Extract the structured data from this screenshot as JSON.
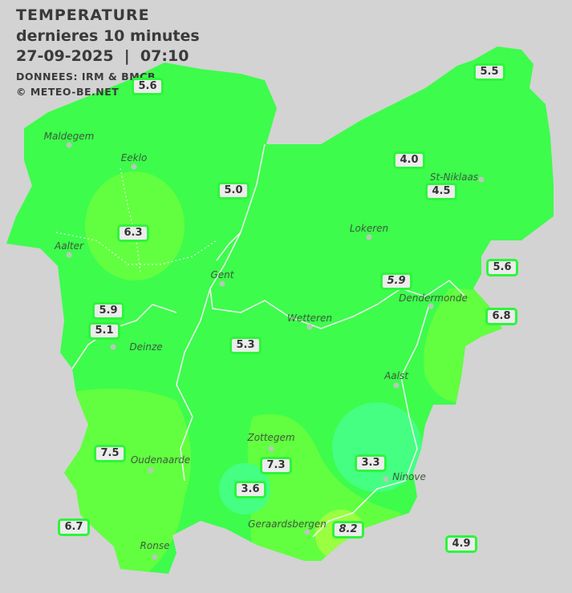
{
  "header": {
    "title": "TEMPERATURE",
    "subtitle": "dernieres 10 minutes",
    "datetime": "27-09-2025  |  07:10",
    "source": "DONNEES: IRM & BMCB",
    "copyright": "© METEO-BE.NET"
  },
  "colors": {
    "background": "#d3d3d3",
    "base_green": "#3dfc4c",
    "warm_green": "#62ff40",
    "cool_green": "#44ff82",
    "warmest": "#99ff40",
    "badge_border": "#2cf53c"
  },
  "towns": [
    "Maldegem",
    "Eeklo",
    "Aalter",
    "Gent",
    "Lokeren",
    "St-Niklaas",
    "Dendermonde",
    "Wetteren",
    "Deinze",
    "Aalst",
    "Zottegem",
    "Oudenaarde",
    "Ninove",
    "Geraardsbergen",
    "Ronse"
  ],
  "stations": [
    {
      "value": "5.6"
    },
    {
      "value": "5.5"
    },
    {
      "value": "4.0"
    },
    {
      "value": "4.5"
    },
    {
      "value": "5.0"
    },
    {
      "value": "6.3"
    },
    {
      "value": "5.6"
    },
    {
      "value": "5.9",
      "italic": true
    },
    {
      "value": "6.8"
    },
    {
      "value": "5.9"
    },
    {
      "value": "5.1"
    },
    {
      "value": "5.3"
    },
    {
      "value": "7.5"
    },
    {
      "value": "7.3"
    },
    {
      "value": "3.3"
    },
    {
      "value": "3.6"
    },
    {
      "value": "6.7"
    },
    {
      "value": "8.2",
      "italic": true
    },
    {
      "value": "4.9"
    }
  ]
}
